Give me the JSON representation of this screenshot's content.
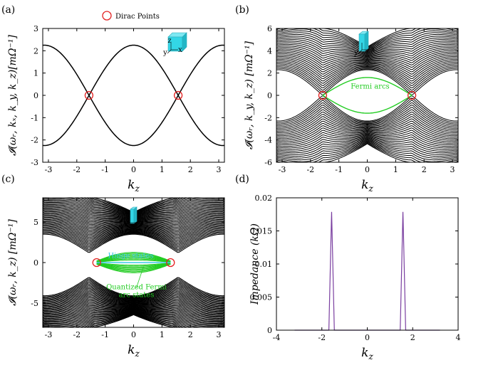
{
  "colors": {
    "band": "#000000",
    "fermi_arc": "#22cc22",
    "hinge": "#3bc8e6",
    "dirac_marker": "#e32222",
    "impedance_line": "#7a3fa0",
    "cube": "#33d6e6"
  },
  "chart_data": [
    {
      "id": "a",
      "type": "line",
      "panel_label": "(a)",
      "xlabel": "k_z",
      "ylabel": "𝓘(ω_r, k_x, k_y, k_z)[mΩ^-1]",
      "ylabel_parts": {
        "main": "𝓘(ω",
        "sub": "r",
        "mid": ", k",
        "sub2": "x",
        "mid2": ", k",
        "sub3": "y",
        "mid3": ", k",
        "sub4": "z",
        "tail": ")[mΩ",
        "sup": "-1",
        "end": "]"
      },
      "xlim": [
        -3.2,
        3.2
      ],
      "ylim": [
        -3,
        3
      ],
      "xticks": [
        -3,
        -2,
        -1,
        0,
        1,
        2,
        3
      ],
      "yticks": [
        -3,
        -2,
        -1,
        0,
        1,
        2,
        3
      ],
      "series": [
        {
          "name": "upper band",
          "amplitude": 2.25,
          "phase_shift": 0
        },
        {
          "name": "lower band",
          "amplitude": -2.25,
          "phase_shift": 0
        }
      ],
      "legend": {
        "label": "Dirac Points",
        "position": "top-center"
      },
      "dirac_points": [
        [
          -1.5708,
          0
        ],
        [
          1.5708,
          0
        ]
      ],
      "inset": "cube"
    },
    {
      "id": "b",
      "type": "line",
      "panel_label": "(b)",
      "xlabel": "k_z",
      "ylabel": "𝓘(ω_r, k_y, k_z) [mΩ^-1]",
      "xlim": [
        -3.2,
        3.2
      ],
      "ylim": [
        -6,
        6
      ],
      "xticks": [
        -3,
        -2,
        -1,
        0,
        1,
        2,
        3
      ],
      "yticks": [
        -6,
        -4,
        -2,
        0,
        2,
        4,
        6
      ],
      "band_envelope": {
        "outer_max": 6.0,
        "inner_min_at_kz0": 2.3,
        "n_lines": 30
      },
      "fermi_arc": {
        "label": "Fermi arcs",
        "peak": 1.6,
        "kz_range": [
          -1.5708,
          1.5708
        ]
      },
      "dirac_points": [
        [
          -1.5708,
          0
        ],
        [
          1.5708,
          0
        ]
      ],
      "inset": "slab"
    },
    {
      "id": "c",
      "type": "line",
      "panel_label": "(c)",
      "xlabel": "k_z",
      "ylabel": "𝓘(ω_r, k_z) [mΩ^-1]",
      "xlim": [
        -3.2,
        3.2
      ],
      "ylim": [
        -8,
        8
      ],
      "xticks": [
        -3,
        -2,
        -1,
        0,
        1,
        2,
        3
      ],
      "yticks": [
        -5,
        0,
        5
      ],
      "band_envelope": {
        "outer_max": 8.0,
        "inner_min_at_kz0": 3.5,
        "n_lines": 40
      },
      "fermi_arc_stack": {
        "label": "Quantized Fermi\narc states",
        "peak_top": 1.4,
        "peak_bottom": 0.35,
        "n_lines": 8,
        "kz_range": [
          -1.3,
          1.3
        ]
      },
      "hinge_state": {
        "label": "Hinge states",
        "kz_range": [
          -1.3,
          1.3
        ],
        "value": 0
      },
      "dirac_points": [
        [
          -1.3,
          0
        ],
        [
          1.3,
          0
        ]
      ],
      "inset": "rod"
    },
    {
      "id": "d",
      "type": "line",
      "panel_label": "(d)",
      "xlabel": "k_z",
      "ylabel": "Impedance (kΩ)",
      "xlim": [
        -4,
        4
      ],
      "ylim": [
        0,
        0.02
      ],
      "xticks": [
        -4,
        -2,
        0,
        2,
        4
      ],
      "ytick_values": [
        0,
        0.005,
        0.01,
        0.015,
        0.02
      ],
      "ytick_labels": [
        "0",
        "0.005",
        "0.01",
        "0.015",
        "0.02"
      ],
      "series": [
        {
          "name": "impedance",
          "peaks": [
            {
              "kz": -1.5708,
              "value": 0.018
            },
            {
              "kz": 1.5708,
              "value": 0.018
            }
          ],
          "width": 0.12,
          "domain": [
            -3.2,
            3.2
          ]
        }
      ]
    }
  ],
  "insets": {
    "axis_x": "x",
    "axis_y": "y",
    "axis_z": "z"
  }
}
